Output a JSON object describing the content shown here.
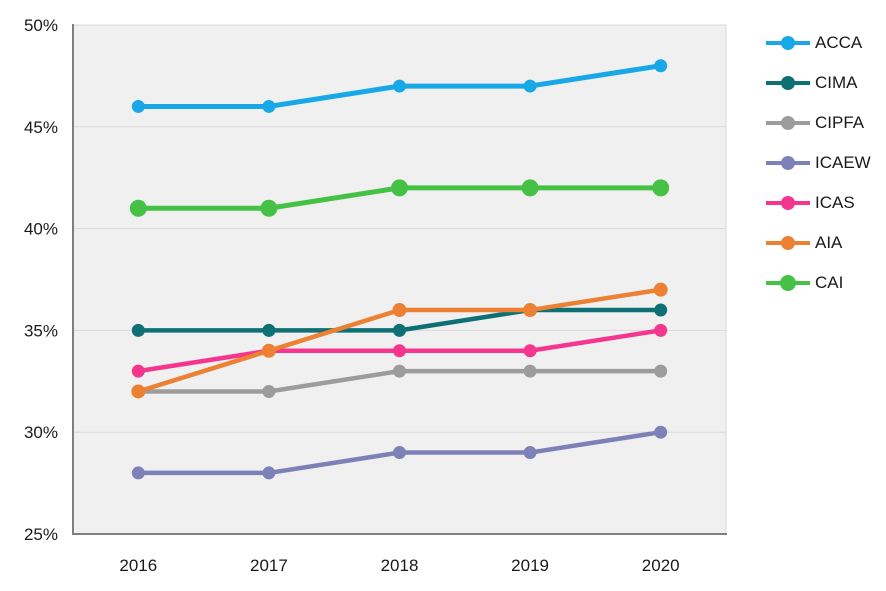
{
  "chart_data": {
    "type": "line",
    "title": "",
    "xlabel": "",
    "ylabel": "",
    "categories": [
      "2016",
      "2017",
      "2018",
      "2019",
      "2020"
    ],
    "series": [
      {
        "name": "ACCA",
        "color": "#18a8e8",
        "values": [
          46,
          46,
          47,
          47,
          48
        ],
        "marker_radius": 6.5,
        "line_width": 5
      },
      {
        "name": "CIMA",
        "color": "#0e6f75",
        "values": [
          35,
          35,
          35,
          36,
          36
        ],
        "marker_radius": 6.5,
        "line_width": 4.5
      },
      {
        "name": "CIPFA",
        "color": "#9c9c9c",
        "values": [
          32,
          32,
          33,
          33,
          33
        ],
        "marker_radius": 6.5,
        "line_width": 4.5
      },
      {
        "name": "ICAEW",
        "color": "#7e81b8",
        "values": [
          28,
          28,
          29,
          29,
          30
        ],
        "marker_radius": 6.5,
        "line_width": 4.5
      },
      {
        "name": "ICAS",
        "color": "#f5368f",
        "values": [
          33,
          34,
          34,
          34,
          35
        ],
        "marker_radius": 6.5,
        "line_width": 4.5
      },
      {
        "name": "AIA",
        "color": "#ec8033",
        "values": [
          32,
          34,
          36,
          36,
          37
        ],
        "marker_radius": 7,
        "line_width": 4.5
      },
      {
        "name": "CAI",
        "color": "#45c245",
        "values": [
          41,
          41,
          42,
          42,
          42
        ],
        "marker_radius": 8.5,
        "line_width": 5,
        "big_marker": true
      }
    ],
    "ylim": [
      25,
      50
    ],
    "ytick_step": 5,
    "ytick_labels": [
      "25%",
      "30%",
      "35%",
      "40%",
      "45%",
      "50%"
    ],
    "grid": true,
    "legend_position": "right"
  },
  "style": {
    "plot_bg": "#f0f0f0",
    "gridline_color": "#d9d9d9",
    "axis_color": "#7f7f7f",
    "border_color": "#d9d9d9",
    "tick_text_color": "#1a1a1a",
    "tick_font_size": 17
  }
}
